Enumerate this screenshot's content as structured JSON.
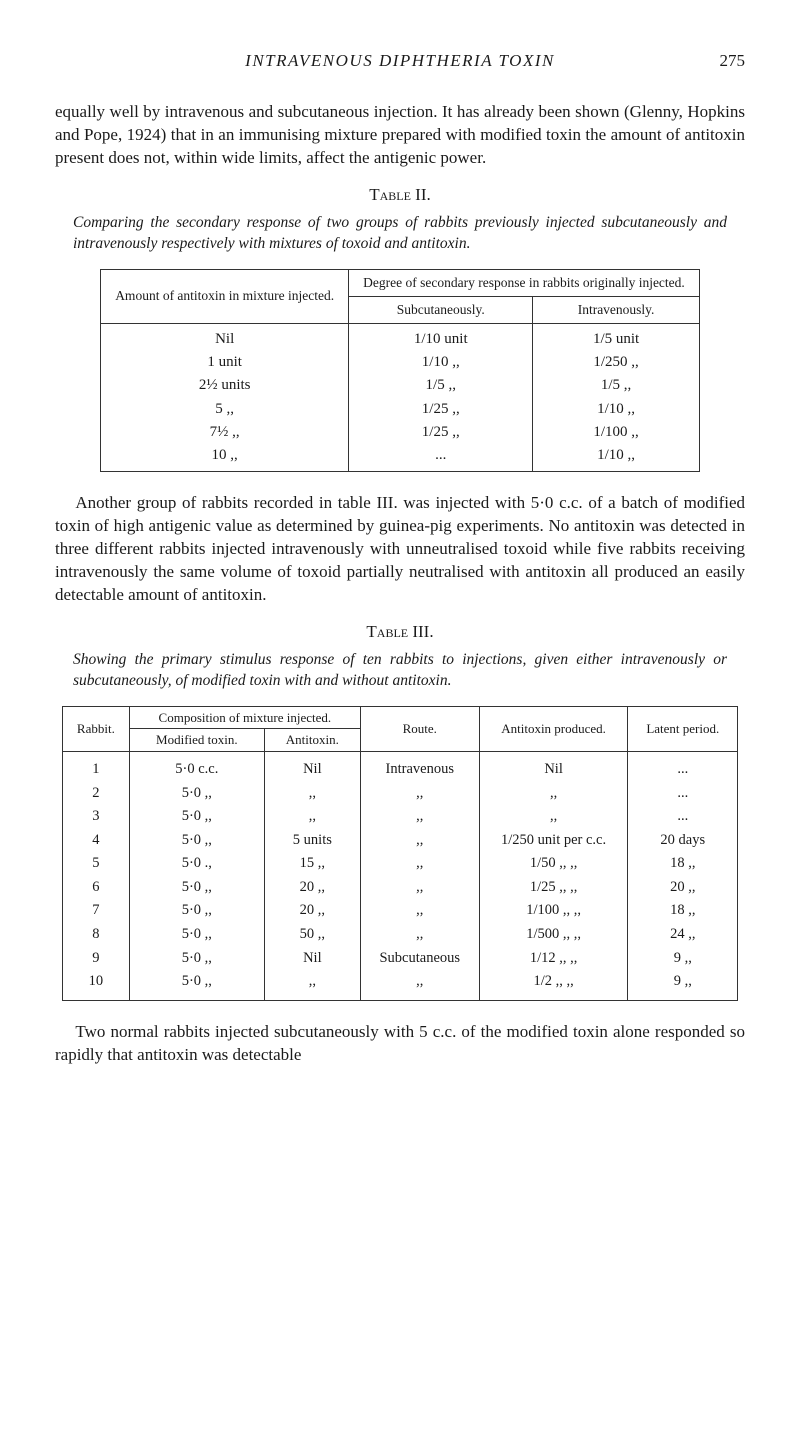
{
  "header": {
    "running_title": "INTRAVENOUS DIPHTHERIA TOXIN",
    "page_number": "275"
  },
  "para1": "equally well by intravenous and subcutaneous injection. It has already been shown (Glenny, Hopkins and Pope, 1924) that in an immunising mixture prepared with modified toxin the amount of antitoxin present does not, within wide limits, affect the antigenic power.",
  "table2": {
    "label": "Table II.",
    "caption": "Comparing the secondary response of two groups of rabbits previously injected subcutaneously and intravenously respectively with mixtures of toxoid and antitoxin.",
    "col_left_header": "Amount of antitoxin in mixture injected.",
    "degree_header": "Degree of secondary response in rabbits originally injected.",
    "sub_header": "Subcutaneously.",
    "iv_header": "Intravenously.",
    "rows": [
      {
        "amt": "Nil",
        "sub": "1/10 unit",
        "iv": "1/5   unit"
      },
      {
        "amt": "1 unit",
        "sub": "1/10  ,,",
        "iv": "1/250  ,,"
      },
      {
        "amt": "2½ units",
        "sub": "1/5   ,,",
        "iv": "1/5    ,,"
      },
      {
        "amt": "5   ,,",
        "sub": "1/25  ,,",
        "iv": "1/10   ,,"
      },
      {
        "amt": "7½  ,,",
        "sub": "1/25  ,,",
        "iv": "1/100  ,,"
      },
      {
        "amt": "10  ,,",
        "sub": "...",
        "iv": "1/10   ,,"
      }
    ]
  },
  "para2": "Another group of rabbits recorded in table III. was injected with 5·0 c.c. of a batch of modified toxin of high antigenic value as determined by guinea-pig experiments. No antitoxin was detected in three different rabbits injected intravenously with unneutralised toxoid while five rabbits receiving intravenously the same volume of toxoid partially neutralised with antitoxin all produced an easily detectable amount of antitoxin.",
  "table3": {
    "label": "Table III.",
    "caption": "Showing the primary stimulus response of ten rabbits to injections, given either intravenously or subcutaneously, of modified toxin with and without antitoxin.",
    "headers": {
      "rabbit": "Rabbit.",
      "composition": "Composition of mixture injected.",
      "modified": "Modified toxin.",
      "antitoxin": "Antitoxin.",
      "route": "Route.",
      "produced": "Antitoxin produced.",
      "latent": "Latent period."
    },
    "rows": [
      {
        "r": "1",
        "mt": "5·0 c.c.",
        "at": "Nil",
        "route": "Intravenous",
        "prod": "Nil",
        "lat": "..."
      },
      {
        "r": "2",
        "mt": "5·0  ,,",
        "at": ",,",
        "route": ",,",
        "prod": ",,",
        "lat": "..."
      },
      {
        "r": "3",
        "mt": "5·0  ,,",
        "at": ",,",
        "route": ",,",
        "prod": ",,",
        "lat": "..."
      },
      {
        "r": "4",
        "mt": "5·0  ,,",
        "at": "5 units",
        "route": ",,",
        "prod": "1/250 unit per c.c.",
        "lat": "20 days"
      },
      {
        "r": "5",
        "mt": "5·0  .,",
        "at": "15  ,,",
        "route": ",,",
        "prod": "1/50   ,,      ,,",
        "lat": "18  ,,"
      },
      {
        "r": "6",
        "mt": "5·0  ,,",
        "at": "20  ,,",
        "route": ",,",
        "prod": "1/25   ,,      ,,",
        "lat": "20  ,,"
      },
      {
        "r": "7",
        "mt": "5·0  ,,",
        "at": "20  ,,",
        "route": ",,",
        "prod": "1/100  ,,      ,,",
        "lat": "18  ,,"
      },
      {
        "r": "8",
        "mt": "5·0  ,,",
        "at": "50  ,,",
        "route": ",,",
        "prod": "1/500  ,,      ,,",
        "lat": "24  ,,"
      },
      {
        "r": "9",
        "mt": "5·0  ,,",
        "at": "Nil",
        "route": "Subcutaneous",
        "prod": "1/12   ,,      ,,",
        "lat": "9  ,,"
      },
      {
        "r": "10",
        "mt": "5·0  ,,",
        "at": ",,",
        "route": ",,",
        "prod": "1/2    ,,      ,,",
        "lat": "9  ,,"
      }
    ]
  },
  "para3": "Two normal rabbits injected subcutaneously with 5 c.c. of the modified toxin alone responded so rapidly that antitoxin was detectable"
}
